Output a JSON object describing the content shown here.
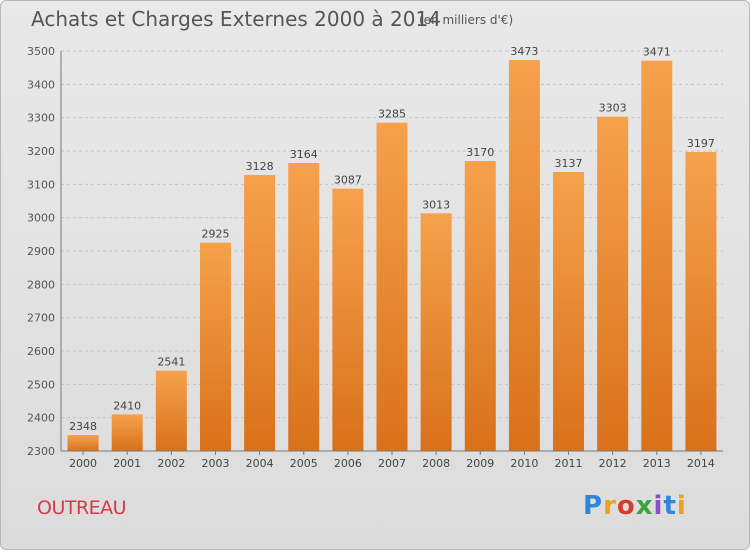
{
  "header": {
    "title": "Achats et Charges Externes 2000 à 2014",
    "subtitle": "(en milliers d'€)"
  },
  "footer": {
    "town": "OUTREAU",
    "logo_text": "Proxiti"
  },
  "colors": {
    "bar_light": "#f6a14d",
    "bar_dark": "#d9711a",
    "town_text": "#d63a4a"
  },
  "chart_data": {
    "type": "bar",
    "title": "Achats et Charges Externes 2000 à 2014",
    "subtitle": "(en milliers d'€)",
    "xlabel": "",
    "ylabel": "",
    "categories": [
      "2000",
      "2001",
      "2002",
      "2003",
      "2004",
      "2005",
      "2006",
      "2007",
      "2008",
      "2009",
      "2010",
      "2011",
      "2012",
      "2013",
      "2014"
    ],
    "values": [
      2348,
      2410,
      2541,
      2925,
      3128,
      3164,
      3087,
      3285,
      3013,
      3170,
      3473,
      3137,
      3303,
      3471,
      3197
    ],
    "ylim": [
      2300,
      3500
    ],
    "yticks": [
      2300,
      2400,
      2500,
      2600,
      2700,
      2800,
      2900,
      3000,
      3100,
      3200,
      3300,
      3400,
      3500
    ],
    "grid": true,
    "legend": "none"
  }
}
